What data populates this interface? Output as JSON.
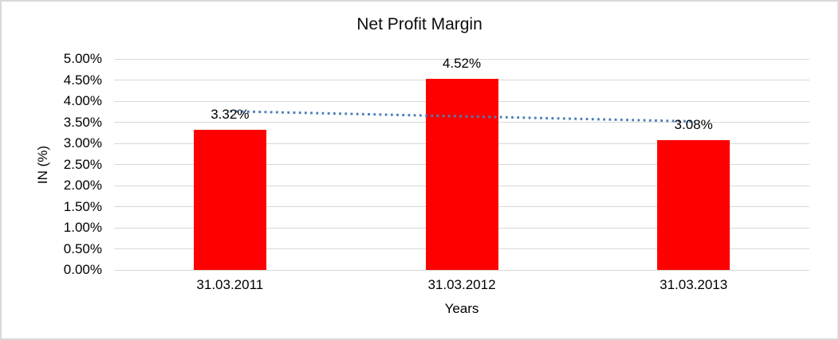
{
  "chart_data": {
    "type": "bar",
    "title": "Net Profit Margin",
    "xlabel": "Years",
    "ylabel": "IN (%)",
    "categories": [
      "31.03.2011",
      "31.03.2012",
      "31.03.2013"
    ],
    "values": [
      3.32,
      4.52,
      3.08
    ],
    "data_labels": [
      "3.32%",
      "4.52%",
      "3.08%"
    ],
    "ylim": [
      0,
      5
    ],
    "ytick_step": 0.5,
    "yticks": [
      "0.00%",
      "0.50%",
      "1.00%",
      "1.50%",
      "2.00%",
      "2.50%",
      "3.00%",
      "3.50%",
      "4.00%",
      "4.50%",
      "5.00%"
    ],
    "grid": "horizontal",
    "legend": "none",
    "bar_color": "#FF0000",
    "gridline_color": "#D9D9D9",
    "text_color": "#000000",
    "trendline": {
      "type": "linear",
      "style": "dotted",
      "color": "#4A7EBB",
      "start_value": 3.76,
      "end_value": 3.52
    }
  }
}
